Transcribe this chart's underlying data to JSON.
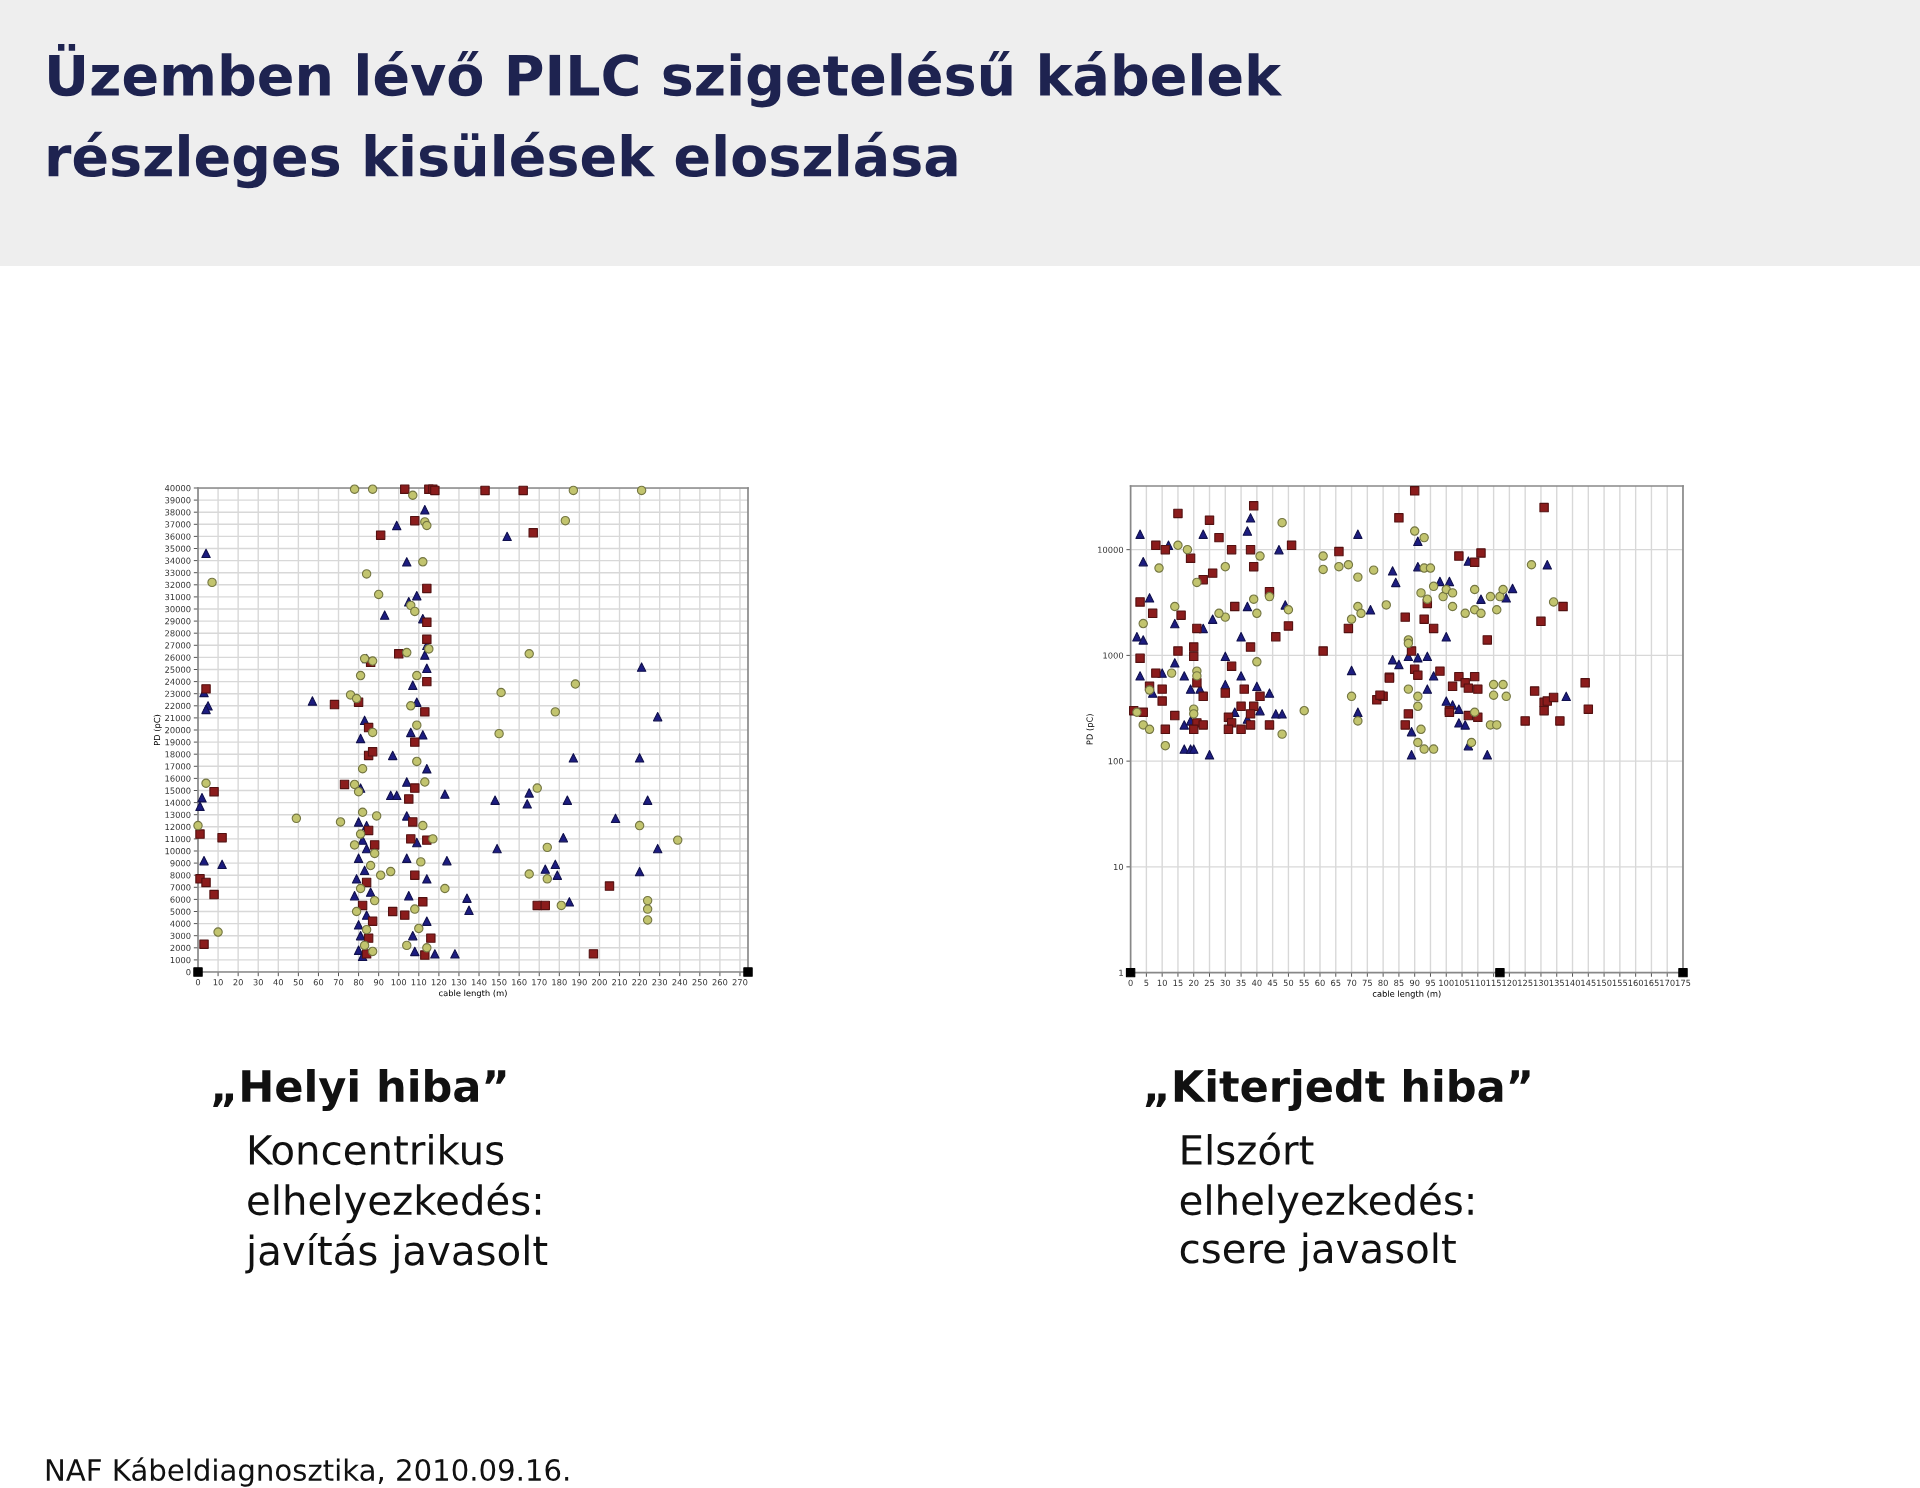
{
  "chart_data": [
    {
      "type": "scatter",
      "title": "Üzemben lévő PILC szigetelésű kábelek\nrészleges kisülések eloszlása",
      "xlabel": "cable length (m)",
      "ylabel": "PD (pC)",
      "xlim": [
        0,
        274
      ],
      "xticks": [
        0,
        10,
        20,
        30,
        40,
        50,
        60,
        70,
        80,
        90,
        100,
        110,
        120,
        130,
        140,
        150,
        160,
        170,
        180,
        190,
        200,
        210,
        220,
        230,
        240,
        250,
        260,
        270
      ],
      "ylim": [
        0,
        40000
      ],
      "yticks": [
        0,
        1000,
        2000,
        3000,
        4000,
        5000,
        6000,
        7000,
        8000,
        9000,
        10000,
        11000,
        12000,
        13000,
        14000,
        15000,
        16000,
        17000,
        18000,
        19000,
        20000,
        21000,
        22000,
        23000,
        24000,
        25000,
        26000,
        27000,
        28000,
        29000,
        30000,
        31000,
        32000,
        33000,
        34000,
        35000,
        36000,
        37000,
        38000,
        39000,
        40000
      ],
      "grid": true,
      "series": [
        {
          "color": "#1c1c80",
          "marker": "triangle",
          "x": [
            4,
            3,
            5,
            4,
            2,
            1,
            3,
            12,
            57,
            93,
            84,
            83,
            81,
            81,
            80,
            84,
            82,
            84,
            80,
            83,
            79,
            86,
            78,
            84,
            80,
            81,
            80,
            82,
            99,
            113,
            104,
            109,
            105,
            112,
            114,
            113,
            114,
            107,
            109,
            106,
            112,
            97,
            114,
            104,
            96,
            99,
            123,
            104,
            109,
            104,
            124,
            114,
            105,
            114,
            107,
            108,
            118,
            128,
            154,
            221,
            229,
            187,
            220,
            165,
            148,
            164,
            184,
            224,
            208,
            182,
            149,
            229,
            173,
            178,
            179,
            220,
            134,
            135,
            185
          ],
          "values": [
            34600,
            23100,
            22000,
            21700,
            14400,
            13700,
            9200,
            8900,
            22400,
            29500,
            25900,
            20800,
            19300,
            15200,
            12400,
            12100,
            10900,
            10200,
            9400,
            8400,
            7700,
            6600,
            6300,
            4700,
            3900,
            3000,
            1800,
            1300,
            36900,
            38200,
            33900,
            31100,
            30600,
            29200,
            27000,
            26200,
            25100,
            23700,
            22300,
            19800,
            19600,
            17900,
            16800,
            15700,
            14600,
            14600,
            14700,
            12900,
            10700,
            9400,
            9200,
            7700,
            6300,
            4200,
            3000,
            1700,
            1500,
            1500,
            36000,
            25200,
            21100,
            17700,
            17700,
            14800,
            14200,
            13900,
            14200,
            14200,
            12700,
            11100,
            10200,
            10200,
            8500,
            8900,
            8000,
            8300,
            6100,
            5100,
            5800
          ]
        },
        {
          "color": "#8b1c1c",
          "marker": "square",
          "x": [
            4,
            8,
            1,
            12,
            1,
            4,
            8,
            3,
            68,
            73,
            91,
            86,
            80,
            85,
            85,
            87,
            85,
            88,
            84,
            82,
            87,
            85,
            84,
            97,
            103,
            115,
            117,
            118,
            108,
            114,
            114,
            114,
            100,
            114,
            113,
            108,
            108,
            105,
            107,
            106,
            114,
            108,
            112,
            103,
            116,
            113,
            143,
            162,
            167,
            205,
            169,
            173,
            197
          ],
          "values": [
            23400,
            14900,
            11400,
            11100,
            7700,
            7400,
            6400,
            2300,
            22100,
            15500,
            36100,
            25600,
            22300,
            20200,
            17900,
            18200,
            11700,
            10500,
            7400,
            5500,
            4200,
            2800,
            1500,
            5000,
            39900,
            39900,
            39900,
            39800,
            37300,
            31700,
            28900,
            27500,
            26300,
            24000,
            21500,
            19000,
            15200,
            14300,
            12400,
            11000,
            10900,
            8000,
            5800,
            4700,
            2800,
            1400,
            39800,
            39800,
            36300,
            7100,
            5500,
            5500,
            1500
          ]
        },
        {
          "color": "#c2c46e",
          "marker": "circle",
          "x": [
            7,
            4,
            0,
            10,
            49,
            71,
            76,
            78,
            87,
            84,
            90,
            83,
            87,
            81,
            79,
            87,
            82,
            78,
            80,
            82,
            89,
            81,
            78,
            88,
            86,
            91,
            81,
            88,
            79,
            84,
            83,
            87,
            96,
            107,
            113,
            114,
            112,
            106,
            108,
            104,
            115,
            109,
            106,
            109,
            109,
            113,
            112,
            117,
            111,
            123,
            108,
            110,
            104,
            114,
            187,
            221,
            183,
            165,
            151,
            188,
            178,
            150,
            169,
            220,
            239,
            174,
            174,
            165,
            181,
            224,
            224,
            224
          ],
          "values": [
            32200,
            15600,
            12100,
            3300,
            12700,
            12400,
            22900,
            39900,
            39900,
            32900,
            31200,
            25900,
            25700,
            24500,
            22600,
            19800,
            16800,
            15500,
            14900,
            13200,
            12900,
            11400,
            10500,
            9800,
            8800,
            8000,
            6900,
            5900,
            5000,
            3500,
            2200,
            1700,
            8300,
            39400,
            37200,
            36900,
            33900,
            30300,
            29800,
            26400,
            26700,
            24500,
            22000,
            20400,
            17400,
            15700,
            12100,
            11000,
            9100,
            6900,
            5200,
            3600,
            2200,
            2000,
            39800,
            39800,
            37300,
            26300,
            23100,
            23800,
            21500,
            19700,
            15200,
            12100,
            10900,
            10300,
            7700,
            8100,
            5500,
            5900,
            5200,
            4300
          ]
        },
        {
          "color": "#000000",
          "marker": "square",
          "x": [
            0,
            274
          ],
          "values": [
            0,
            0
          ]
        }
      ],
      "annotations": [
        "„Helyi hiba”",
        "Koncentrikus\nelhelyezkedés:\njavítás javasolt"
      ]
    },
    {
      "type": "scatter",
      "xlabel": "cable length (m)",
      "ylabel": "PD (pC)",
      "log": true,
      "xlim": [
        0,
        175
      ],
      "xticks": [
        0,
        5,
        10,
        15,
        20,
        25,
        30,
        35,
        40,
        45,
        50,
        55,
        60,
        65,
        70,
        75,
        80,
        85,
        90,
        95,
        100,
        105,
        110,
        115,
        120,
        125,
        130,
        135,
        140,
        145,
        150,
        155,
        160,
        165,
        170,
        175
      ],
      "ylim": [
        1,
        40000
      ],
      "yticks": [
        1,
        10,
        100,
        1000,
        10000
      ],
      "grid": true,
      "series": [
        {
          "color": "#1c1c80",
          "marker": "triangle",
          "x": [
            3,
            23,
            38,
            12,
            37,
            4,
            6,
            2,
            4,
            14,
            23,
            26,
            37,
            49,
            35,
            14,
            30,
            47,
            3,
            7,
            19,
            22,
            30,
            35,
            40,
            44,
            17,
            10,
            17,
            19,
            17,
            19,
            20,
            25,
            33,
            37,
            46,
            48,
            41,
            70,
            72,
            72,
            76,
            91,
            107,
            132,
            83,
            84,
            91,
            98,
            101,
            111,
            119,
            121,
            100,
            88,
            91,
            94,
            85,
            96,
            83,
            94,
            102,
            104,
            100,
            89,
            104,
            106,
            89,
            107,
            113,
            138
          ],
          "values": [
            14000,
            14000,
            20000,
            11000,
            15000,
            7700,
            3500,
            1500,
            1400,
            2000,
            1800,
            2200,
            2900,
            3000,
            1500,
            850,
            980,
            10000,
            640,
            440,
            480,
            480,
            530,
            640,
            510,
            440,
            640,
            680,
            220,
            240,
            130,
            130,
            130,
            115,
            290,
            250,
            280,
            280,
            300,
            720,
            290,
            14000,
            2700,
            12000,
            7800,
            7200,
            6300,
            4900,
            6900,
            5000,
            5000,
            3400,
            3500,
            4300,
            1500,
            980,
            950,
            980,
            820,
            640,
            910,
            480,
            340,
            310,
            370,
            190,
            230,
            220,
            115,
            140,
            115,
            410
          ]
        },
        {
          "color": "#8b1c1c",
          "marker": "square",
          "x": [
            15,
            25,
            39,
            32,
            8,
            11,
            38,
            28,
            19,
            39,
            51,
            26,
            3,
            7,
            16,
            23,
            21,
            33,
            44,
            50,
            46,
            3,
            15,
            20,
            20,
            32,
            38,
            8,
            10,
            6,
            21,
            23,
            30,
            36,
            41,
            39,
            1,
            4,
            10,
            14,
            11,
            21,
            23,
            20,
            31,
            32,
            35,
            31,
            38,
            38,
            44,
            35,
            66,
            61,
            69,
            78,
            80,
            82,
            90,
            85,
            131,
            104,
            111,
            109,
            94,
            87,
            93,
            96,
            113,
            130,
            137,
            89,
            90,
            91,
            98,
            82,
            79,
            102,
            104,
            106,
            107,
            109,
            110,
            101,
            88,
            87,
            101,
            107,
            110,
            128,
            131,
            132,
            131,
            134,
            125,
            136,
            144,
            145
          ],
          "values": [
            22000,
            19000,
            26000,
            10000,
            11000,
            10000,
            10000,
            13000,
            8300,
            6900,
            11000,
            6000,
            3200,
            2500,
            2400,
            5200,
            1800,
            2900,
            4000,
            1900,
            1500,
            940,
            1100,
            1200,
            980,
            790,
            1200,
            680,
            480,
            510,
            550,
            410,
            440,
            480,
            410,
            330,
            300,
            290,
            370,
            270,
            200,
            230,
            220,
            200,
            260,
            230,
            200,
            200,
            280,
            220,
            220,
            330,
            9600,
            1100,
            1800,
            380,
            410,
            620,
            36000,
            20000,
            25000,
            8700,
            9300,
            7600,
            3100,
            2300,
            2200,
            1800,
            1400,
            2100,
            2900,
            1100,
            740,
            650,
            710,
            610,
            420,
            510,
            630,
            550,
            490,
            630,
            480,
            300,
            280,
            220,
            290,
            270,
            260,
            460,
            360,
            370,
            300,
            400,
            240,
            240,
            550,
            310
          ]
        },
        {
          "color": "#c2c46e",
          "marker": "circle",
          "x": [
            48,
            15,
            18,
            9,
            41,
            30,
            4,
            14,
            21,
            30,
            28,
            39,
            44,
            50,
            40,
            40,
            13,
            6,
            21,
            21,
            2,
            4,
            6,
            11,
            20,
            20,
            48,
            55,
            61,
            61,
            66,
            69,
            72,
            70,
            72,
            73,
            77,
            81,
            70,
            72,
            90,
            93,
            127,
            93,
            95,
            96,
            92,
            94,
            99,
            100,
            102,
            109,
            114,
            117,
            118,
            109,
            102,
            106,
            111,
            116,
            134,
            88,
            88,
            88,
            91,
            91,
            92,
            109,
            114,
            116,
            91,
            93,
            96,
            108,
            115,
            118,
            119,
            115
          ],
          "values": [
            18000,
            11000,
            10000,
            6700,
            8700,
            6900,
            2000,
            2900,
            4900,
            2300,
            2500,
            3400,
            3600,
            2700,
            2500,
            870,
            680,
            470,
            710,
            640,
            290,
            220,
            200,
            140,
            310,
            280,
            180,
            300,
            6500,
            8700,
            6900,
            7200,
            5500,
            2200,
            2900,
            2500,
            6400,
            3000,
            410,
            240,
            15000,
            13000,
            7200,
            6700,
            6700,
            4500,
            3900,
            3400,
            3600,
            4200,
            3900,
            4200,
            3600,
            3600,
            4200,
            2700,
            2900,
            2500,
            2500,
            2700,
            3200,
            1400,
            1300,
            480,
            410,
            330,
            200,
            290,
            220,
            220,
            150,
            130,
            130,
            150,
            530,
            530,
            410,
            420
          ]
        },
        {
          "color": "#000000",
          "marker": "square",
          "x": [
            0,
            117,
            175
          ],
          "values": [
            1,
            1,
            1
          ]
        }
      ],
      "annotations": [
        "„Kiterjedt hiba”",
        "Elszórt\nelhelyezkedés:\ncsere javasolt",
        "NAF Kábeldiagnosztika, 2010.09.16."
      ]
    }
  ]
}
